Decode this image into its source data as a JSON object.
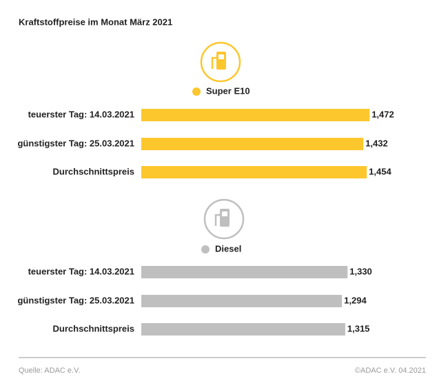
{
  "title": "Kraftstoffpreise im Monat März 2021",
  "chart_data": [
    {
      "type": "bar",
      "orientation": "horizontal",
      "categories": [
        "teuerster Tag: 14.03.2021",
        "günstigster Tag: 25.03.2021",
        "Durchschnittspreis"
      ],
      "series": [
        {
          "name": "Super E10",
          "color": "#fcc62d",
          "values": [
            1.472,
            1.432,
            1.454
          ],
          "value_labels": [
            "1,472",
            "1,432",
            "1,454"
          ]
        }
      ]
    },
    {
      "type": "bar",
      "orientation": "horizontal",
      "categories": [
        "teuerster Tag: 14.03.2021",
        "günstigster Tag: 25.03.2021",
        "Durchschnittspreis"
      ],
      "series": [
        {
          "name": "Diesel",
          "color": "#bfbfbf",
          "values": [
            1.33,
            1.294,
            1.315
          ],
          "value_labels": [
            "1,330",
            "1,294",
            "1,315"
          ]
        }
      ]
    }
  ],
  "footer": {
    "source": "Quelle: ADAC e.V.",
    "credit": "©ADAC e.V. 04.2021"
  }
}
